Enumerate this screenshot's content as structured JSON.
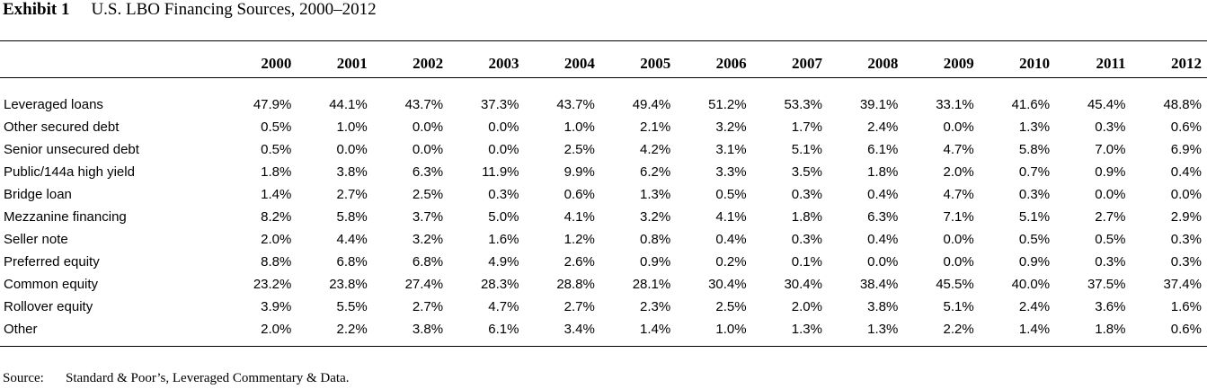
{
  "exhibit": {
    "label": "Exhibit 1",
    "title": "U.S. LBO Financing Sources, 2000–2012"
  },
  "table": {
    "years": [
      "2000",
      "2001",
      "2002",
      "2003",
      "2004",
      "2005",
      "2006",
      "2007",
      "2008",
      "2009",
      "2010",
      "2011",
      "2012"
    ],
    "rows": [
      {
        "label": "Leveraged loans",
        "values": [
          "47.9%",
          "44.1%",
          "43.7%",
          "37.3%",
          "43.7%",
          "49.4%",
          "51.2%",
          "53.3%",
          "39.1%",
          "33.1%",
          "41.6%",
          "45.4%",
          "48.8%"
        ]
      },
      {
        "label": "Other secured debt",
        "values": [
          "0.5%",
          "1.0%",
          "0.0%",
          "0.0%",
          "1.0%",
          "2.1%",
          "3.2%",
          "1.7%",
          "2.4%",
          "0.0%",
          "1.3%",
          "0.3%",
          "0.6%"
        ]
      },
      {
        "label": "Senior unsecured debt",
        "values": [
          "0.5%",
          "0.0%",
          "0.0%",
          "0.0%",
          "2.5%",
          "4.2%",
          "3.1%",
          "5.1%",
          "6.1%",
          "4.7%",
          "5.8%",
          "7.0%",
          "6.9%"
        ]
      },
      {
        "label": "Public/144a high yield",
        "values": [
          "1.8%",
          "3.8%",
          "6.3%",
          "11.9%",
          "9.9%",
          "6.2%",
          "3.3%",
          "3.5%",
          "1.8%",
          "2.0%",
          "0.7%",
          "0.9%",
          "0.4%"
        ]
      },
      {
        "label": "Bridge loan",
        "values": [
          "1.4%",
          "2.7%",
          "2.5%",
          "0.3%",
          "0.6%",
          "1.3%",
          "0.5%",
          "0.3%",
          "0.4%",
          "4.7%",
          "0.3%",
          "0.0%",
          "0.0%"
        ]
      },
      {
        "label": "Mezzanine financing",
        "values": [
          "8.2%",
          "5.8%",
          "3.7%",
          "5.0%",
          "4.1%",
          "3.2%",
          "4.1%",
          "1.8%",
          "6.3%",
          "7.1%",
          "5.1%",
          "2.7%",
          "2.9%"
        ]
      },
      {
        "label": "Seller note",
        "values": [
          "2.0%",
          "4.4%",
          "3.2%",
          "1.6%",
          "1.2%",
          "0.8%",
          "0.4%",
          "0.3%",
          "0.4%",
          "0.0%",
          "0.5%",
          "0.5%",
          "0.3%"
        ]
      },
      {
        "label": "Preferred equity",
        "values": [
          "8.8%",
          "6.8%",
          "6.8%",
          "4.9%",
          "2.6%",
          "0.9%",
          "0.2%",
          "0.1%",
          "0.0%",
          "0.0%",
          "0.9%",
          "0.3%",
          "0.3%"
        ]
      },
      {
        "label": "Common equity",
        "values": [
          "23.2%",
          "23.8%",
          "27.4%",
          "28.3%",
          "28.8%",
          "28.1%",
          "30.4%",
          "30.4%",
          "38.4%",
          "45.5%",
          "40.0%",
          "37.5%",
          "37.4%"
        ]
      },
      {
        "label": "Rollover equity",
        "values": [
          "3.9%",
          "5.5%",
          "2.7%",
          "4.7%",
          "2.7%",
          "2.3%",
          "2.5%",
          "2.0%",
          "3.8%",
          "5.1%",
          "2.4%",
          "3.6%",
          "1.6%"
        ]
      },
      {
        "label": "Other",
        "values": [
          "2.0%",
          "2.2%",
          "3.8%",
          "6.1%",
          "3.4%",
          "1.4%",
          "1.0%",
          "1.3%",
          "1.3%",
          "2.2%",
          "1.4%",
          "1.8%",
          "0.6%"
        ]
      }
    ]
  },
  "source": {
    "label": "Source:",
    "text": "Standard & Poor’s, Leveraged Commentary & Data."
  }
}
